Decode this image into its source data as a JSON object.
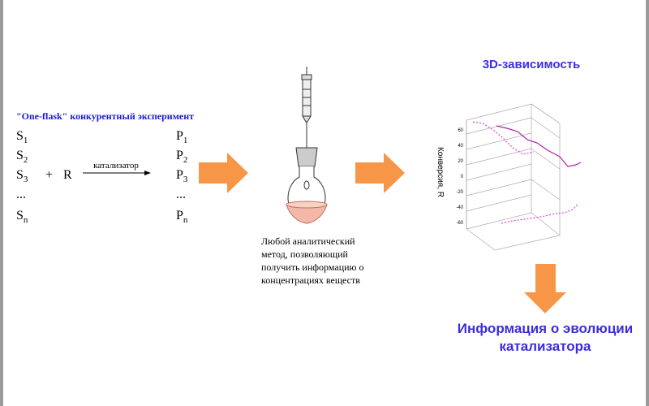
{
  "experiment": {
    "title": "\"One-flask\" конкурентный эксперимент",
    "substrates": [
      {
        "symbol": "S",
        "index": "1"
      },
      {
        "symbol": "S",
        "index": "2"
      },
      {
        "symbol": "S",
        "index": "3"
      },
      {
        "symbol": "..."
      },
      {
        "symbol": "S",
        "index": "n"
      }
    ],
    "products": [
      {
        "symbol": "P",
        "index": "1"
      },
      {
        "symbol": "P",
        "index": "2"
      },
      {
        "symbol": "P",
        "index": "3"
      },
      {
        "symbol": "..."
      },
      {
        "symbol": "P",
        "index": "n"
      }
    ],
    "plus": "+",
    "reagent": "R",
    "catalyst": "катализатор"
  },
  "analysis": {
    "lines": [
      "Любой аналитический",
      "метод, позволяющий",
      "получить информацию о",
      "концентрациях веществ"
    ]
  },
  "plot3d": {
    "title": "3D-зависимость",
    "z_label": "Конверсия, R",
    "z_ticks": [
      60,
      40,
      20,
      0,
      -20,
      -40,
      -60
    ]
  },
  "conclusion": {
    "lines": [
      "Информация о эволюции",
      "катализатора"
    ]
  }
}
